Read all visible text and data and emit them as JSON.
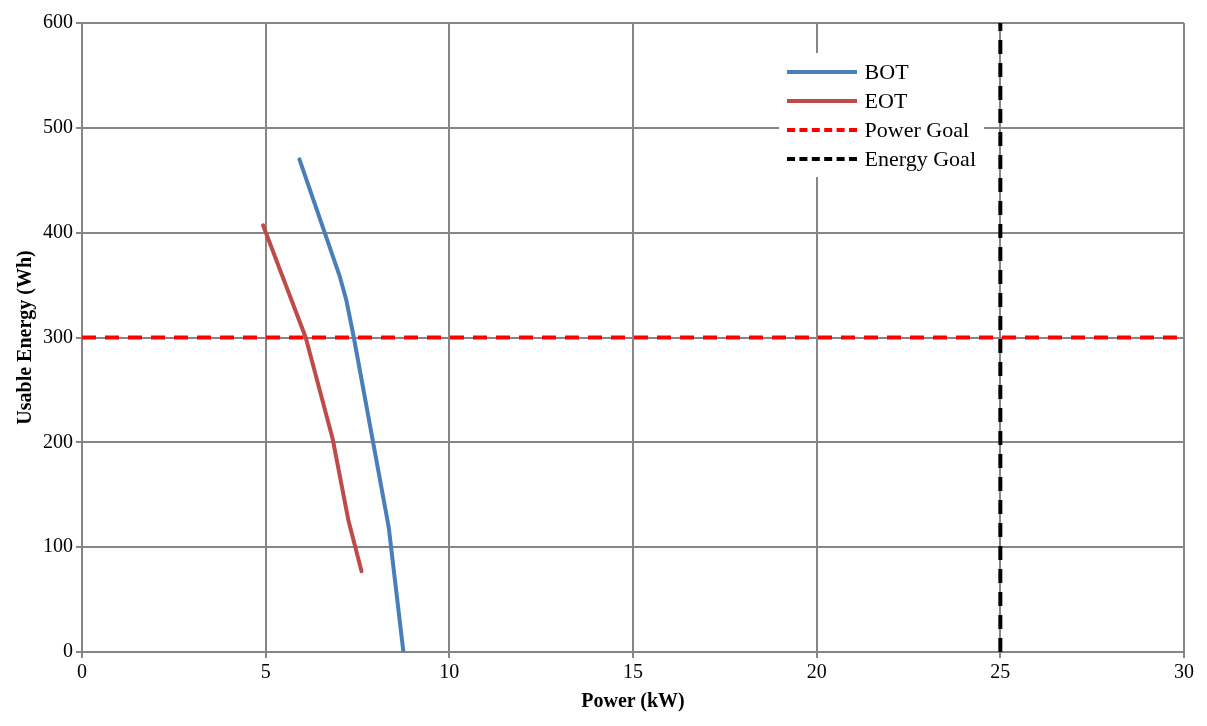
{
  "chart_data": {
    "type": "line",
    "xlabel": "Power (kW)",
    "ylabel": "Usable Energy (Wh)",
    "xlim": [
      0,
      30
    ],
    "xticks": [
      0,
      5,
      10,
      15,
      20,
      25,
      30
    ],
    "ylim": [
      0,
      600
    ],
    "yticks": [
      0,
      100,
      200,
      300,
      400,
      500,
      600
    ],
    "grid": true,
    "legend": "top right",
    "marker": "none",
    "line_style": "solid",
    "series": [
      {
        "name": "BOT",
        "color": "#4a7ebb",
        "x": [
          5.92,
          7.02,
          7.2,
          7.4,
          8.35,
          8.75
        ],
        "values": [
          470,
          358,
          335,
          300,
          119,
          0
        ]
      },
      {
        "name": "EOT",
        "color": "#be4b48",
        "x": [
          4.93,
          6.09,
          6.82,
          7.25,
          7.61
        ],
        "values": [
          407,
          300,
          204,
          126,
          77
        ]
      }
    ],
    "ref_lines": [
      {
        "axis": "y",
        "value": 300,
        "label": "Power Goal",
        "color": "#ff0000",
        "line_style": "dashed"
      },
      {
        "axis": "x",
        "value": 25,
        "label": "Energy Goal",
        "color": "#000000",
        "line_style": "dashed"
      }
    ]
  }
}
